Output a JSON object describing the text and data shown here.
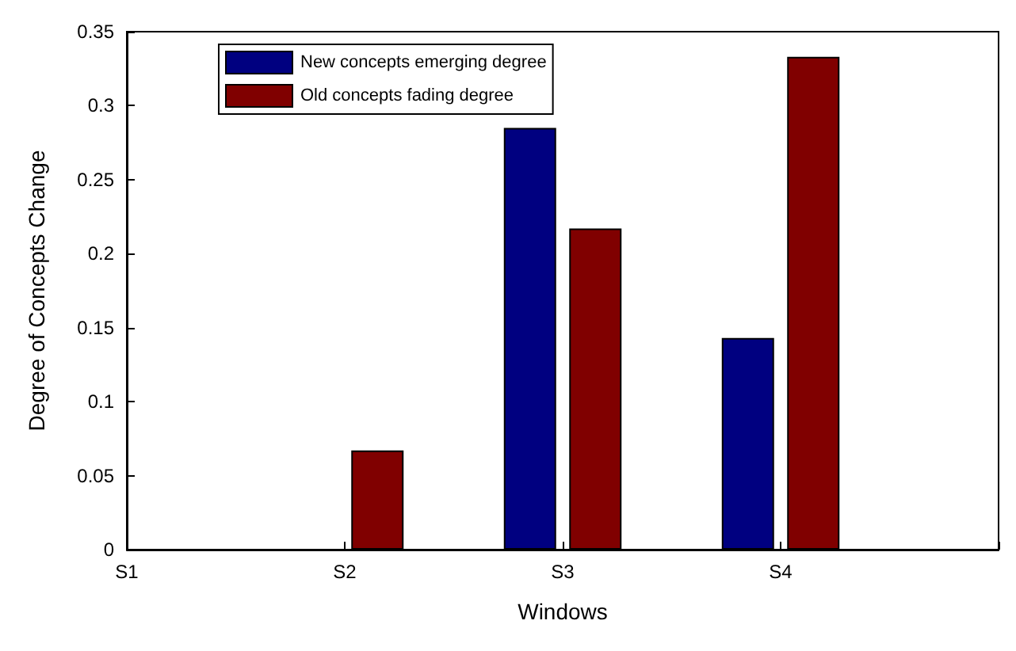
{
  "chart_data": {
    "type": "bar",
    "xlabel": "Windows",
    "ylabel": "Degree of Concepts Change",
    "categories": [
      "S1",
      "S2",
      "S3",
      "S4",
      null
    ],
    "series": [
      {
        "name": "New concepts emerging degree",
        "color": "#000080",
        "values": [
          0,
          0,
          0.285,
          0.143,
          null
        ]
      },
      {
        "name": "Old concepts fading degree",
        "color": "#800000",
        "values": [
          0,
          0.067,
          0.217,
          0.333,
          null
        ]
      }
    ],
    "ylim": [
      0,
      0.35
    ],
    "yticks": [
      0,
      0.05,
      0.1,
      0.15,
      0.2,
      0.25,
      0.3,
      0.35
    ],
    "grid": false,
    "legend": "top left"
  }
}
